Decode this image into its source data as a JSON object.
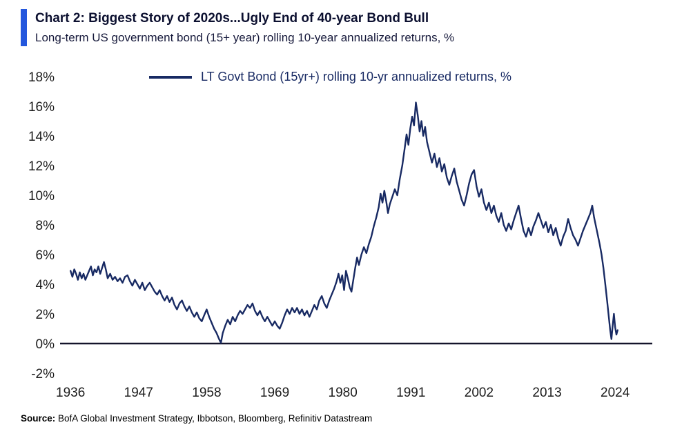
{
  "header": {
    "title": "Chart 2: Biggest Story of 2020s...Ugly End of 40-year Bond Bull",
    "subtitle": "Long-term US government bond (15+ year) rolling 10-year annualized returns, %",
    "accent_color": "#2457dd"
  },
  "source": {
    "label": "Source:",
    "text": " BofA Global Investment Strategy, Ibbotson, Bloomberg, Refinitiv Datastream"
  },
  "chart_data": {
    "type": "line",
    "title": "Chart 2: Biggest Story of 2020s...Ugly End of 40-year Bond Bull",
    "subtitle": "Long-term US government bond (15+ year) rolling 10-year annualized returns, %",
    "xlabel": "",
    "ylabel": "",
    "xlim": [
      1935.2,
      2030
    ],
    "ylim": [
      -2,
      18
    ],
    "xticks": [
      1936,
      1947,
      1958,
      1969,
      1980,
      1991,
      2002,
      2013,
      2024
    ],
    "yticks": [
      18,
      16,
      14,
      12,
      10,
      8,
      6,
      4,
      2,
      0,
      -2
    ],
    "grid": false,
    "zero_line": true,
    "legend_position": "top-center",
    "series": [
      {
        "name": "LT Govt Bond (15yr+) rolling 10-yr annualized returns, %",
        "color": "#182a63",
        "points": [
          [
            1936.0,
            4.9
          ],
          [
            1936.3,
            4.5
          ],
          [
            1936.6,
            5.0
          ],
          [
            1936.9,
            4.7
          ],
          [
            1937.2,
            4.3
          ],
          [
            1937.5,
            4.8
          ],
          [
            1937.8,
            4.4
          ],
          [
            1938.1,
            4.7
          ],
          [
            1938.4,
            4.3
          ],
          [
            1938.7,
            4.6
          ],
          [
            1939.0,
            4.9
          ],
          [
            1939.3,
            5.2
          ],
          [
            1939.6,
            4.6
          ],
          [
            1939.9,
            5.0
          ],
          [
            1940.2,
            4.8
          ],
          [
            1940.5,
            5.2
          ],
          [
            1940.8,
            4.7
          ],
          [
            1941.1,
            5.1
          ],
          [
            1941.4,
            5.5
          ],
          [
            1941.7,
            5.0
          ],
          [
            1942.0,
            4.4
          ],
          [
            1942.4,
            4.7
          ],
          [
            1942.8,
            4.3
          ],
          [
            1943.2,
            4.5
          ],
          [
            1943.6,
            4.2
          ],
          [
            1944.0,
            4.4
          ],
          [
            1944.4,
            4.1
          ],
          [
            1944.8,
            4.5
          ],
          [
            1945.2,
            4.6
          ],
          [
            1945.6,
            4.2
          ],
          [
            1946.0,
            3.9
          ],
          [
            1946.4,
            4.3
          ],
          [
            1946.8,
            4.0
          ],
          [
            1947.2,
            3.7
          ],
          [
            1947.6,
            4.1
          ],
          [
            1948.0,
            3.6
          ],
          [
            1948.4,
            3.9
          ],
          [
            1948.8,
            4.1
          ],
          [
            1949.2,
            3.8
          ],
          [
            1949.6,
            3.5
          ],
          [
            1950.0,
            3.3
          ],
          [
            1950.4,
            3.6
          ],
          [
            1950.8,
            3.2
          ],
          [
            1951.2,
            2.9
          ],
          [
            1951.6,
            3.2
          ],
          [
            1952.0,
            2.8
          ],
          [
            1952.4,
            3.1
          ],
          [
            1952.8,
            2.6
          ],
          [
            1953.2,
            2.3
          ],
          [
            1953.6,
            2.7
          ],
          [
            1954.0,
            2.9
          ],
          [
            1954.4,
            2.5
          ],
          [
            1954.8,
            2.2
          ],
          [
            1955.2,
            2.5
          ],
          [
            1955.6,
            2.1
          ],
          [
            1956.0,
            1.8
          ],
          [
            1956.4,
            2.1
          ],
          [
            1956.8,
            1.7
          ],
          [
            1957.2,
            1.5
          ],
          [
            1957.6,
            1.9
          ],
          [
            1958.0,
            2.3
          ],
          [
            1958.4,
            1.8
          ],
          [
            1958.8,
            1.4
          ],
          [
            1959.2,
            1.0
          ],
          [
            1959.6,
            0.7
          ],
          [
            1960.0,
            0.3
          ],
          [
            1960.3,
            0.05
          ],
          [
            1960.6,
            0.7
          ],
          [
            1961.0,
            1.2
          ],
          [
            1961.4,
            1.6
          ],
          [
            1961.8,
            1.3
          ],
          [
            1962.2,
            1.8
          ],
          [
            1962.6,
            1.5
          ],
          [
            1963.0,
            1.9
          ],
          [
            1963.4,
            2.2
          ],
          [
            1963.8,
            2.0
          ],
          [
            1964.2,
            2.3
          ],
          [
            1964.6,
            2.6
          ],
          [
            1965.0,
            2.4
          ],
          [
            1965.4,
            2.7
          ],
          [
            1965.8,
            2.2
          ],
          [
            1966.2,
            1.9
          ],
          [
            1966.6,
            2.2
          ],
          [
            1967.0,
            1.8
          ],
          [
            1967.4,
            1.5
          ],
          [
            1967.8,
            1.8
          ],
          [
            1968.2,
            1.5
          ],
          [
            1968.6,
            1.2
          ],
          [
            1969.0,
            1.5
          ],
          [
            1969.4,
            1.2
          ],
          [
            1969.8,
            1.0
          ],
          [
            1970.2,
            1.4
          ],
          [
            1970.6,
            1.9
          ],
          [
            1971.0,
            2.3
          ],
          [
            1971.4,
            2.0
          ],
          [
            1971.8,
            2.4
          ],
          [
            1972.2,
            2.1
          ],
          [
            1972.6,
            2.4
          ],
          [
            1973.0,
            2.0
          ],
          [
            1973.4,
            2.3
          ],
          [
            1973.8,
            1.9
          ],
          [
            1974.2,
            2.2
          ],
          [
            1974.6,
            1.8
          ],
          [
            1975.0,
            2.2
          ],
          [
            1975.4,
            2.6
          ],
          [
            1975.8,
            2.3
          ],
          [
            1976.2,
            2.9
          ],
          [
            1976.6,
            3.2
          ],
          [
            1977.0,
            2.7
          ],
          [
            1977.4,
            2.4
          ],
          [
            1977.8,
            2.9
          ],
          [
            1978.2,
            3.3
          ],
          [
            1978.6,
            3.7
          ],
          [
            1979.0,
            4.2
          ],
          [
            1979.3,
            4.7
          ],
          [
            1979.6,
            4.1
          ],
          [
            1979.9,
            4.6
          ],
          [
            1980.2,
            3.6
          ],
          [
            1980.5,
            4.9
          ],
          [
            1980.8,
            4.4
          ],
          [
            1981.1,
            3.8
          ],
          [
            1981.4,
            3.5
          ],
          [
            1981.7,
            4.3
          ],
          [
            1982.0,
            5.1
          ],
          [
            1982.3,
            5.8
          ],
          [
            1982.6,
            5.3
          ],
          [
            1983.0,
            6.0
          ],
          [
            1983.4,
            6.5
          ],
          [
            1983.8,
            6.1
          ],
          [
            1984.2,
            6.7
          ],
          [
            1984.6,
            7.2
          ],
          [
            1985.0,
            7.9
          ],
          [
            1985.4,
            8.5
          ],
          [
            1985.8,
            9.2
          ],
          [
            1986.1,
            10.1
          ],
          [
            1986.4,
            9.5
          ],
          [
            1986.7,
            10.3
          ],
          [
            1987.0,
            9.6
          ],
          [
            1987.3,
            8.8
          ],
          [
            1987.6,
            9.4
          ],
          [
            1988.0,
            9.9
          ],
          [
            1988.4,
            10.4
          ],
          [
            1988.8,
            10.0
          ],
          [
            1989.2,
            11.1
          ],
          [
            1989.6,
            12.0
          ],
          [
            1990.0,
            13.2
          ],
          [
            1990.3,
            14.1
          ],
          [
            1990.6,
            13.4
          ],
          [
            1990.9,
            14.5
          ],
          [
            1991.2,
            15.3
          ],
          [
            1991.5,
            14.7
          ],
          [
            1991.8,
            16.25
          ],
          [
            1992.1,
            15.4
          ],
          [
            1992.4,
            14.3
          ],
          [
            1992.7,
            15.0
          ],
          [
            1993.0,
            14.0
          ],
          [
            1993.3,
            14.6
          ],
          [
            1993.6,
            13.6
          ],
          [
            1994.0,
            12.9
          ],
          [
            1994.4,
            12.2
          ],
          [
            1994.8,
            12.8
          ],
          [
            1995.2,
            11.9
          ],
          [
            1995.6,
            12.5
          ],
          [
            1996.0,
            11.6
          ],
          [
            1996.4,
            12.1
          ],
          [
            1996.8,
            11.2
          ],
          [
            1997.2,
            10.7
          ],
          [
            1997.6,
            11.3
          ],
          [
            1998.0,
            11.8
          ],
          [
            1998.4,
            10.9
          ],
          [
            1998.8,
            10.3
          ],
          [
            1999.2,
            9.7
          ],
          [
            1999.6,
            9.3
          ],
          [
            2000.0,
            10.0
          ],
          [
            2000.4,
            10.8
          ],
          [
            2000.8,
            11.4
          ],
          [
            2001.2,
            11.7
          ],
          [
            2001.6,
            10.6
          ],
          [
            2002.0,
            9.9
          ],
          [
            2002.4,
            10.4
          ],
          [
            2002.8,
            9.5
          ],
          [
            2003.2,
            9.0
          ],
          [
            2003.6,
            9.5
          ],
          [
            2004.0,
            8.8
          ],
          [
            2004.4,
            9.3
          ],
          [
            2004.8,
            8.6
          ],
          [
            2005.2,
            8.2
          ],
          [
            2005.6,
            8.8
          ],
          [
            2006.0,
            8.0
          ],
          [
            2006.4,
            7.6
          ],
          [
            2006.8,
            8.1
          ],
          [
            2007.2,
            7.7
          ],
          [
            2007.6,
            8.3
          ],
          [
            2008.0,
            8.8
          ],
          [
            2008.4,
            9.3
          ],
          [
            2008.8,
            8.4
          ],
          [
            2009.2,
            7.6
          ],
          [
            2009.6,
            7.2
          ],
          [
            2010.0,
            7.8
          ],
          [
            2010.4,
            7.3
          ],
          [
            2010.8,
            7.9
          ],
          [
            2011.2,
            8.3
          ],
          [
            2011.6,
            8.8
          ],
          [
            2012.0,
            8.3
          ],
          [
            2012.4,
            7.8
          ],
          [
            2012.8,
            8.2
          ],
          [
            2013.2,
            7.5
          ],
          [
            2013.6,
            8.0
          ],
          [
            2014.0,
            7.3
          ],
          [
            2014.4,
            7.8
          ],
          [
            2014.8,
            7.1
          ],
          [
            2015.2,
            6.6
          ],
          [
            2015.6,
            7.2
          ],
          [
            2016.0,
            7.6
          ],
          [
            2016.4,
            8.4
          ],
          [
            2016.8,
            7.8
          ],
          [
            2017.2,
            7.3
          ],
          [
            2017.6,
            7.0
          ],
          [
            2018.0,
            6.6
          ],
          [
            2018.4,
            7.1
          ],
          [
            2018.8,
            7.6
          ],
          [
            2019.2,
            8.0
          ],
          [
            2019.6,
            8.4
          ],
          [
            2020.0,
            8.8
          ],
          [
            2020.3,
            9.3
          ],
          [
            2020.6,
            8.5
          ],
          [
            2020.9,
            7.9
          ],
          [
            2021.2,
            7.3
          ],
          [
            2021.5,
            6.7
          ],
          [
            2021.8,
            6.0
          ],
          [
            2022.1,
            5.1
          ],
          [
            2022.4,
            4.0
          ],
          [
            2022.7,
            2.9
          ],
          [
            2023.0,
            1.7
          ],
          [
            2023.2,
            0.9
          ],
          [
            2023.4,
            0.3
          ],
          [
            2023.6,
            1.2
          ],
          [
            2023.8,
            2.0
          ],
          [
            2024.0,
            1.1
          ],
          [
            2024.2,
            0.6
          ],
          [
            2024.4,
            0.9
          ]
        ]
      }
    ]
  }
}
